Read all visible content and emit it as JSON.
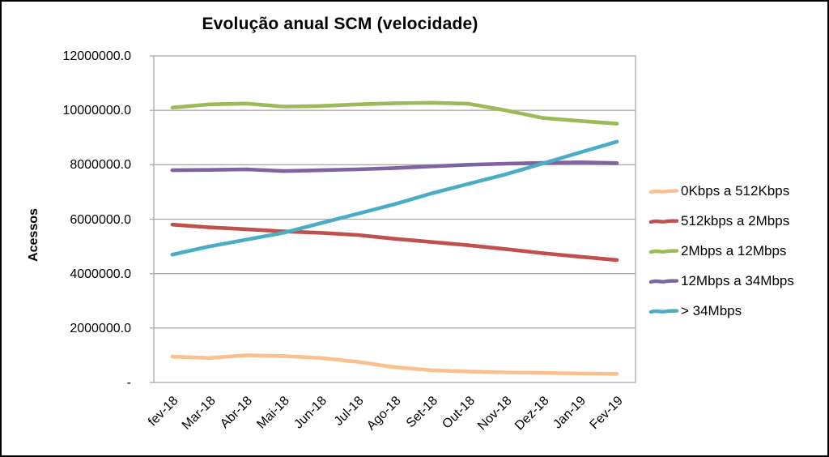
{
  "chart_data": {
    "type": "line",
    "title": "Evolução anual SCM (velocidade)",
    "xlabel": "",
    "ylabel": "Acessos",
    "ylim": [
      0,
      12000000
    ],
    "y_tick_interval": 2000000,
    "y_tick_labels_top_to_bottom": [
      "12000000.0",
      "10000000.0",
      "8000000.0",
      "6000000.0",
      "4000000.0",
      "2000000.0",
      "-"
    ],
    "grid": true,
    "legend_position": "right",
    "categories": [
      "fev-18",
      "Mar-18",
      "Abr-18",
      "Mai-18",
      "Jun-18",
      "Jul-18",
      "Ago-18",
      "Set-18",
      "Out-18",
      "Nov-18",
      "Dez-18",
      "Jan-19",
      "Fev-19"
    ],
    "series": [
      {
        "name": "0Kbps a 512Kbps",
        "color": "#FAC090",
        "values": [
          950000,
          900000,
          1000000,
          970000,
          900000,
          760000,
          560000,
          450000,
          400000,
          370000,
          350000,
          330000,
          320000
        ]
      },
      {
        "name": "512kbps a 2Mbps",
        "color": "#C0504D",
        "values": [
          5800000,
          5700000,
          5630000,
          5550000,
          5500000,
          5420000,
          5280000,
          5160000,
          5040000,
          4900000,
          4750000,
          4620000,
          4500000
        ]
      },
      {
        "name": "2Mbps a 12Mbps",
        "color": "#9BBB59",
        "values": [
          10100000,
          10220000,
          10250000,
          10140000,
          10160000,
          10220000,
          10260000,
          10280000,
          10240000,
          10000000,
          9720000,
          9610000,
          9510000
        ]
      },
      {
        "name": "12Mbps a 34Mbps",
        "color": "#8064A2",
        "values": [
          7800000,
          7810000,
          7830000,
          7770000,
          7800000,
          7830000,
          7880000,
          7940000,
          8000000,
          8040000,
          8070000,
          8090000,
          8060000
        ]
      },
      {
        "name": "> 34Mbps",
        "color": "#4BACC6",
        "values": [
          4700000,
          5000000,
          5250000,
          5500000,
          5850000,
          6200000,
          6550000,
          6950000,
          7300000,
          7650000,
          8050000,
          8450000,
          8850000
        ]
      }
    ]
  },
  "style_colors": {
    "gridline": "#ABABAB",
    "plot_border": "#ABABAB",
    "text": "#000000",
    "background": "#FFFFFF"
  }
}
